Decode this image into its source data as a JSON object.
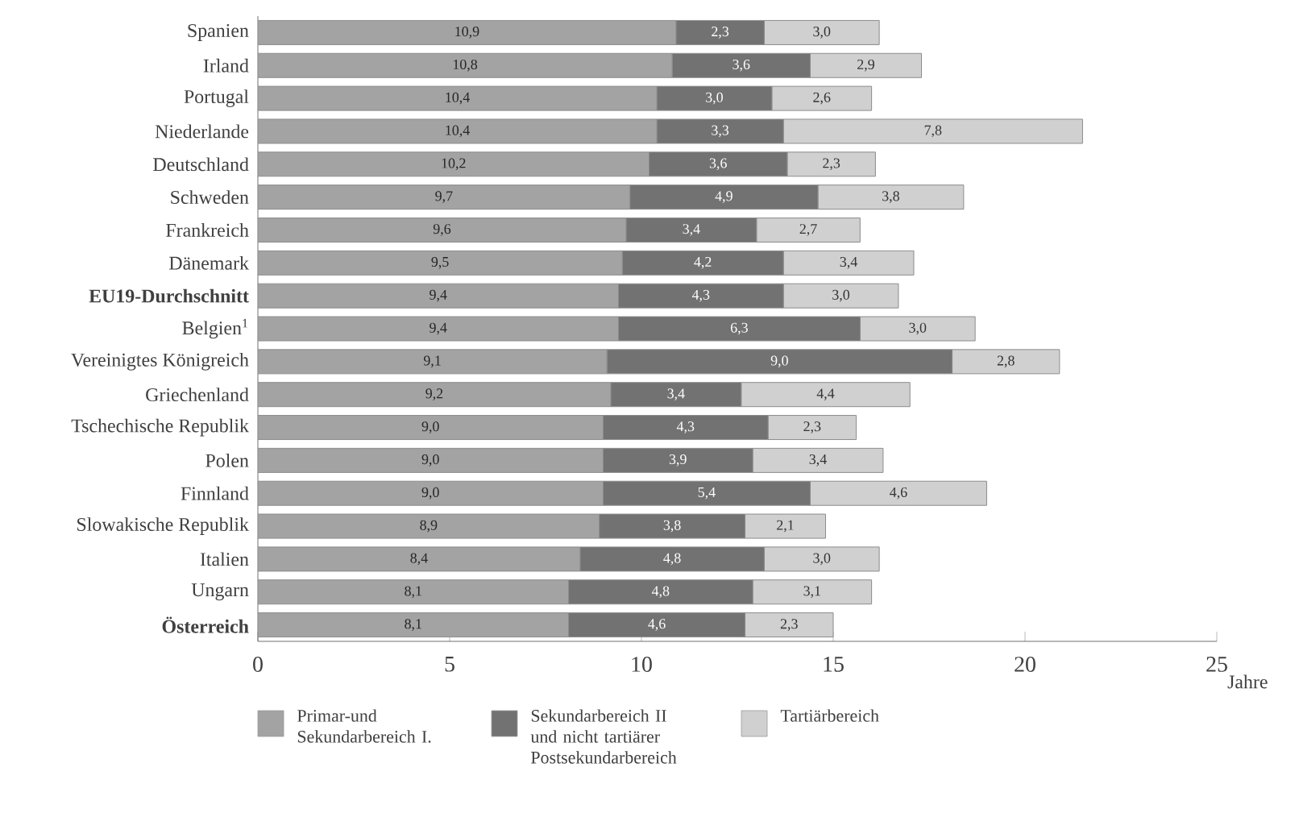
{
  "chart_data": {
    "type": "bar",
    "orientation": "horizontal",
    "stacked": true,
    "xlabel": "Jahre",
    "categories": [
      "Spanien",
      "Irland",
      "Portugal",
      "Niederlande",
      "Deutschland",
      "Schweden",
      "Frankreich",
      "Dänemark",
      "EU19-Durchschnitt",
      "Belgien$^{1}$",
      "Vereinigtes Königreich",
      "Griechenland",
      "Tschechische Republik",
      "Polen",
      "Finnland",
      "Slowakische Republik",
      "Italien",
      "Ungarn",
      "Österreich"
    ],
    "series": [
      {
        "name": "Primar-und Sekundarbereich I.",
        "color": "#a3a3a3",
        "values": [
          10.9,
          10.8,
          10.4,
          10.4,
          10.2,
          9.7,
          9.6,
          9.5,
          9.4,
          9.4,
          9.1,
          9.2,
          9.0,
          9.0,
          9.0,
          8.9,
          8.4,
          8.1,
          8.1
        ],
        "value_labels": [
          "10,9",
          "10,8",
          "10,4",
          "10,4",
          "10,2",
          "9,7",
          "9,6",
          "9,5",
          "9,4",
          "9,4",
          "9,1",
          "9,2",
          "9,0",
          "9,0",
          "9,0",
          "8,9",
          "8,4",
          "8,1",
          "8,1"
        ]
      },
      {
        "name": "Sekundarbereich II und nicht tartiärer Postsekundarbereich",
        "color": "#727272",
        "values": [
          2.3,
          3.6,
          3.0,
          3.3,
          3.6,
          4.9,
          3.4,
          4.2,
          4.3,
          6.3,
          9.0,
          3.4,
          4.3,
          3.9,
          5.4,
          3.8,
          4.8,
          4.8,
          4.6
        ],
        "value_labels": [
          "2,3",
          "3,6",
          "3,0",
          "3,3",
          "3,6",
          "4,9",
          "3,4",
          "4,2",
          "4,3",
          "6,3",
          "9,0",
          "3,4",
          "4,3",
          "3,9",
          "5,4",
          "3,8",
          "4,8",
          "4,8",
          "4,6"
        ]
      },
      {
        "name": "Tartiärbereich",
        "color": "#d0d0d0",
        "values": [
          3.0,
          2.9,
          2.6,
          7.8,
          2.3,
          3.8,
          2.7,
          3.4,
          3.0,
          3.0,
          2.8,
          4.4,
          2.3,
          3.4,
          4.6,
          2.1,
          3.0,
          3.1,
          2.3
        ],
        "value_labels": [
          "3,0",
          "2,9",
          "2,6",
          "7,8",
          "2,3",
          "3,8",
          "2,7",
          "3,4",
          "3,0",
          "3,0",
          "2,8",
          "4,4",
          "2,3",
          "3,4",
          "4,6",
          "2,1",
          "3,0",
          "3,1",
          "2,3"
        ]
      }
    ],
    "xlim": [
      0,
      25
    ],
    "xticks": [
      0,
      5,
      10,
      15,
      20,
      25
    ],
    "legend": "bottom"
  }
}
